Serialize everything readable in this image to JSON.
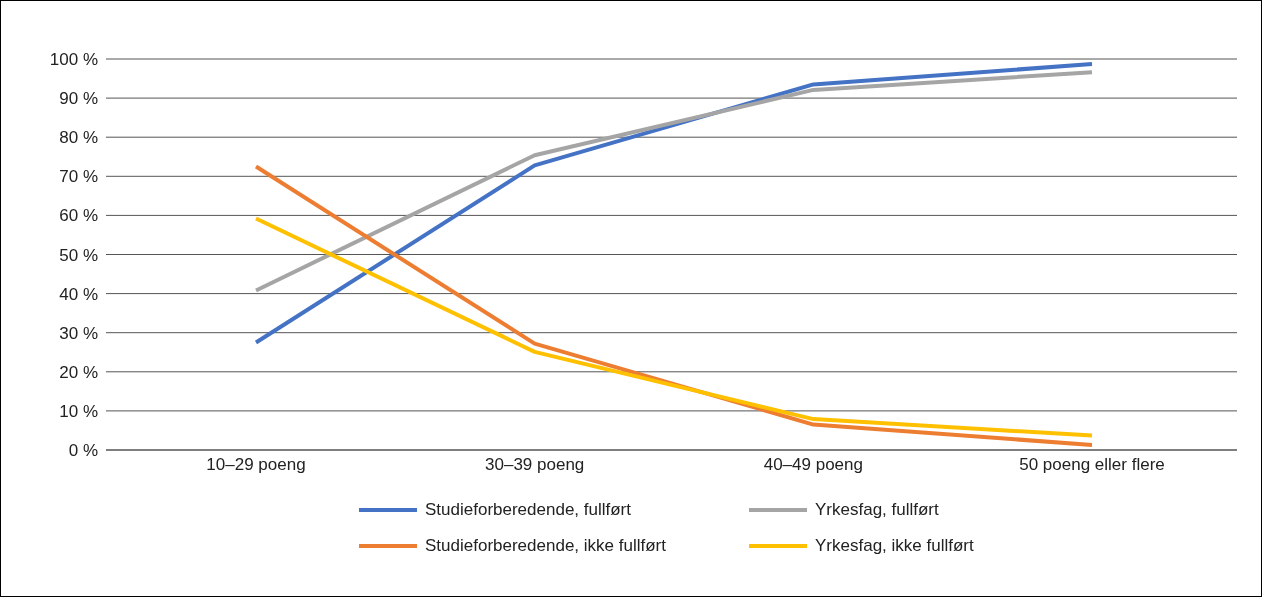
{
  "chart_data": {
    "type": "line",
    "categories": [
      "10–29 poeng",
      "30–39 poeng",
      "40–49 poeng",
      "50 poeng eller flere"
    ],
    "series": [
      {
        "name": "Studieforberedende, fullført",
        "color": "#4472c4",
        "values": [
          27.5,
          72.8,
          93.5,
          98.7
        ]
      },
      {
        "name": "Yrkesfag, fullført",
        "color": "#a5a5a5",
        "values": [
          40.8,
          75.4,
          92.1,
          96.6
        ]
      },
      {
        "name": "Studieforberedende, ikke fullført",
        "color": "#ed7d31",
        "values": [
          72.5,
          27.2,
          6.5,
          1.3
        ]
      },
      {
        "name": "Yrkesfag, ikke fullført",
        "color": "#ffc000",
        "values": [
          59.2,
          25.1,
          7.9,
          3.7
        ]
      }
    ],
    "ylim": [
      0,
      100
    ],
    "yticks": [
      {
        "value": 0,
        "label": "0 %"
      },
      {
        "value": 10,
        "label": "10 %"
      },
      {
        "value": 20,
        "label": "20 %"
      },
      {
        "value": 30,
        "label": "30 %"
      },
      {
        "value": 40,
        "label": "40 %"
      },
      {
        "value": 50,
        "label": "50 %"
      },
      {
        "value": 60,
        "label": "60 %"
      },
      {
        "value": 70,
        "label": "70 %"
      },
      {
        "value": 80,
        "label": "80 %"
      },
      {
        "value": 90,
        "label": "90 %"
      },
      {
        "value": 100,
        "label": "100 %"
      }
    ],
    "grid": "y",
    "legend": "bottom",
    "marker": "none",
    "line_style": "solid"
  }
}
